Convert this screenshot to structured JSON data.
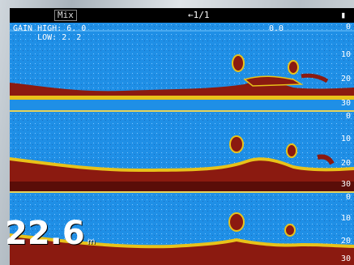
{
  "topbar": {
    "mode": "Mix",
    "pager": "←1/1",
    "signal_icon": "signal-icon"
  },
  "gain": {
    "high_label": "GAIN HIGH:",
    "high_value": "6. 0",
    "low_label": "LOW:",
    "low_value": "2. 2",
    "right_value": "0.0"
  },
  "panels": [
    {
      "tag": "",
      "depth_labels": [
        "0",
        "10",
        "20",
        "30"
      ]
    },
    {
      "tag": "",
      "depth_labels": [
        "0",
        "10",
        "20",
        "30"
      ]
    },
    {
      "tag": "",
      "depth_labels": [
        "0",
        "10",
        "20",
        "30"
      ]
    }
  ],
  "current_depth": {
    "value": "22.6",
    "unit": "m"
  },
  "colors": {
    "water": "#1f8fe6",
    "bottom_strong": "#8b1a10",
    "bottom_mid": "#e8c21a",
    "separator": "#e6d25a"
  }
}
